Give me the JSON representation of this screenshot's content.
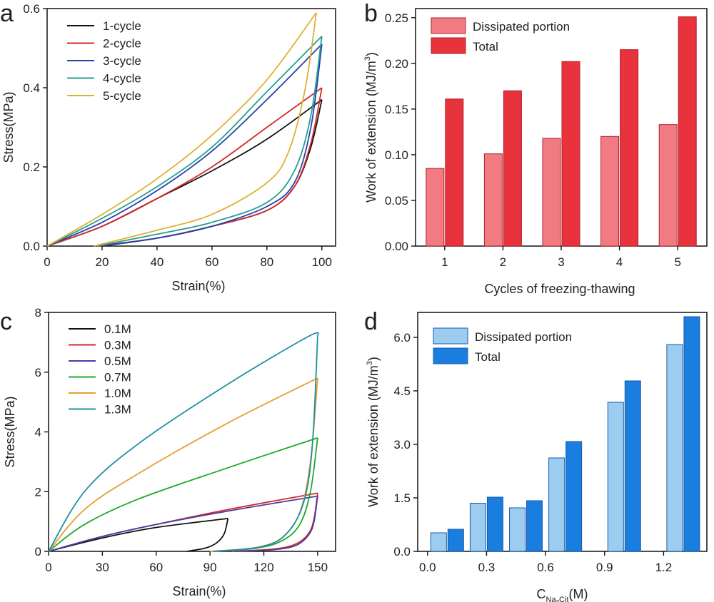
{
  "chart_data": [
    {
      "panel": "a",
      "type": "line",
      "title": "",
      "xlabel": "Strain(%)",
      "ylabel": "Stress(MPa)",
      "xlim": [
        0,
        105
      ],
      "ylim": [
        0,
        0.6
      ],
      "xticks": [
        "0",
        "20",
        "40",
        "60",
        "80",
        "100"
      ],
      "yticks": [
        "0.0",
        "0.2",
        "0.4",
        "0.6"
      ],
      "legend_position": "top-left",
      "series": [
        {
          "name": "1-cycle",
          "color": "#111111",
          "loading": [
            [
              0,
              0
            ],
            [
              20,
              0.05
            ],
            [
              40,
              0.12
            ],
            [
              60,
              0.19
            ],
            [
              80,
              0.27
            ],
            [
              100,
              0.37
            ]
          ],
          "unloading": [
            [
              100,
              0.37
            ],
            [
              96,
              0.25
            ],
            [
              90,
              0.15
            ],
            [
              80,
              0.09
            ],
            [
              60,
              0.05
            ],
            [
              40,
              0.02
            ],
            [
              20,
              0.0
            ]
          ]
        },
        {
          "name": "2-cycle",
          "color": "#d22a2a",
          "loading": [
            [
              0,
              0
            ],
            [
              20,
              0.05
            ],
            [
              40,
              0.12
            ],
            [
              60,
              0.2
            ],
            [
              80,
              0.3
            ],
            [
              100,
              0.4
            ]
          ],
          "unloading": [
            [
              100,
              0.4
            ],
            [
              96,
              0.26
            ],
            [
              90,
              0.15
            ],
            [
              80,
              0.09
            ],
            [
              60,
              0.05
            ],
            [
              40,
              0.02
            ],
            [
              19,
              0.0
            ]
          ]
        },
        {
          "name": "3-cycle",
          "color": "#2a3ea8",
          "loading": [
            [
              0,
              0
            ],
            [
              20,
              0.06
            ],
            [
              40,
              0.14
            ],
            [
              60,
              0.24
            ],
            [
              80,
              0.37
            ],
            [
              100,
              0.51
            ]
          ],
          "unloading": [
            [
              100,
              0.51
            ],
            [
              96,
              0.3
            ],
            [
              90,
              0.16
            ],
            [
              80,
              0.1
            ],
            [
              60,
              0.05
            ],
            [
              40,
              0.02
            ],
            [
              18,
              0.0
            ]
          ]
        },
        {
          "name": "4-cycle",
          "color": "#20a090",
          "loading": [
            [
              0,
              0
            ],
            [
              20,
              0.07
            ],
            [
              40,
              0.15
            ],
            [
              60,
              0.25
            ],
            [
              80,
              0.39
            ],
            [
              100,
              0.53
            ]
          ],
          "unloading": [
            [
              100,
              0.53
            ],
            [
              96,
              0.33
            ],
            [
              90,
              0.19
            ],
            [
              80,
              0.11
            ],
            [
              60,
              0.06
            ],
            [
              40,
              0.03
            ],
            [
              18,
              0.0
            ]
          ]
        },
        {
          "name": "5-cycle",
          "color": "#e0b030",
          "loading": [
            [
              0,
              0
            ],
            [
              20,
              0.08
            ],
            [
              40,
              0.17
            ],
            [
              60,
              0.28
            ],
            [
              80,
              0.42
            ],
            [
              98,
              0.59
            ]
          ],
          "unloading": [
            [
              98,
              0.59
            ],
            [
              94,
              0.4
            ],
            [
              88,
              0.24
            ],
            [
              80,
              0.16
            ],
            [
              60,
              0.08
            ],
            [
              40,
              0.04
            ],
            [
              17,
              0.0
            ]
          ]
        }
      ]
    },
    {
      "panel": "b",
      "type": "bar",
      "title": "",
      "xlabel": "Cycles of freezing-thawing",
      "ylabel": "Work of extension (MJ/m",
      "ylabel_sup": "3",
      "ylabel_end": ")",
      "categories": [
        "1",
        "2",
        "3",
        "4",
        "5"
      ],
      "ylim": [
        0,
        0.26
      ],
      "yticks": [
        "0.00",
        "0.05",
        "0.10",
        "0.15",
        "0.20",
        "0.25"
      ],
      "legend_position": "top-left",
      "series": [
        {
          "name": "Dissipated portion",
          "color": "#f27b83",
          "values": [
            0.085,
            0.101,
            0.118,
            0.12,
            0.133
          ]
        },
        {
          "name": "Total",
          "color": "#e8323c",
          "values": [
            0.161,
            0.17,
            0.202,
            0.215,
            0.251
          ]
        }
      ]
    },
    {
      "panel": "c",
      "type": "line",
      "title": "",
      "xlabel": "Strain(%)",
      "ylabel": "Stress(MPa)",
      "xlim": [
        0,
        160
      ],
      "ylim": [
        0,
        8
      ],
      "xticks": [
        "0",
        "30",
        "60",
        "90",
        "120",
        "150"
      ],
      "yticks": [
        "0",
        "2",
        "4",
        "6",
        "8"
      ],
      "legend_position": "top-left",
      "series": [
        {
          "name": "0.1M",
          "color": "#111111",
          "loading": [
            [
              0,
              0
            ],
            [
              30,
              0.45
            ],
            [
              60,
              0.8
            ],
            [
              100,
              1.1
            ]
          ],
          "unloading": [
            [
              100,
              1.1
            ],
            [
              98,
              0.6
            ],
            [
              94,
              0.3
            ],
            [
              88,
              0.12
            ],
            [
              77,
              0.0
            ]
          ]
        },
        {
          "name": "0.3M",
          "color": "#d22a2a",
          "loading": [
            [
              0,
              0
            ],
            [
              30,
              0.5
            ],
            [
              60,
              0.9
            ],
            [
              100,
              1.4
            ],
            [
              150,
              1.95
            ]
          ],
          "unloading": [
            [
              150,
              1.95
            ],
            [
              148,
              1.1
            ],
            [
              145,
              0.6
            ],
            [
              138,
              0.25
            ],
            [
              126,
              0.08
            ],
            [
              102,
              0.0
            ]
          ]
        },
        {
          "name": "0.5M",
          "color": "#4b3aa8",
          "loading": [
            [
              0,
              0
            ],
            [
              30,
              0.5
            ],
            [
              60,
              0.9
            ],
            [
              100,
              1.35
            ],
            [
              150,
              1.85
            ]
          ],
          "unloading": [
            [
              150,
              1.85
            ],
            [
              148,
              1.0
            ],
            [
              145,
              0.55
            ],
            [
              138,
              0.2
            ],
            [
              126,
              0.06
            ],
            [
              104,
              0.0
            ]
          ]
        },
        {
          "name": "0.7M",
          "color": "#22a82e",
          "loading": [
            [
              0,
              0
            ],
            [
              20,
              0.9
            ],
            [
              50,
              1.75
            ],
            [
              100,
              2.8
            ],
            [
              150,
              3.8
            ]
          ],
          "unloading": [
            [
              150,
              3.8
            ],
            [
              146,
              2.0
            ],
            [
              140,
              0.9
            ],
            [
              130,
              0.35
            ],
            [
              115,
              0.1
            ],
            [
              90,
              0.0
            ]
          ]
        },
        {
          "name": "1.0M",
          "color": "#e6a030",
          "loading": [
            [
              0,
              0
            ],
            [
              20,
              1.4
            ],
            [
              50,
              2.6
            ],
            [
              100,
              4.3
            ],
            [
              150,
              5.8
            ]
          ],
          "unloading": [
            [
              150,
              5.8
            ],
            [
              146,
              3.0
            ],
            [
              140,
              1.3
            ],
            [
              130,
              0.45
            ],
            [
              115,
              0.12
            ],
            [
              90,
              0.0
            ]
          ]
        },
        {
          "name": "1.3M",
          "color": "#1f8fa0",
          "loading": [
            [
              0,
              0
            ],
            [
              20,
              2.0
            ],
            [
              50,
              3.6
            ],
            [
              100,
              5.6
            ],
            [
              145,
              7.2
            ],
            [
              150,
              7.2
            ]
          ],
          "unloading": [
            [
              150,
              7.2
            ],
            [
              147,
              3.5
            ],
            [
              142,
              1.6
            ],
            [
              132,
              0.55
            ],
            [
              118,
              0.15
            ],
            [
              92,
              0.0
            ]
          ]
        }
      ]
    },
    {
      "panel": "d",
      "type": "bar",
      "title": "",
      "xlabel": "C",
      "xlabel_sub": "Na",
      "xlabel_sub2": "3",
      "xlabel_sub3": "Cit",
      "xlabel_end": "(M)",
      "ylabel": "Work of extension (MJ/m",
      "ylabel_sup": "3",
      "ylabel_end": ")",
      "categories": [
        "0.1",
        "0.3",
        "0.5",
        "0.7",
        "1.0",
        "1.3"
      ],
      "x_positions": [
        0.1,
        0.3,
        0.5,
        0.7,
        1.0,
        1.3
      ],
      "xlim": [
        -0.05,
        1.42
      ],
      "xticks": [
        "0.0",
        "0.3",
        "0.6",
        "0.9",
        "1.2"
      ],
      "ylim": [
        0,
        6.7
      ],
      "yticks": [
        "0.0",
        "1.5",
        "3.0",
        "4.5",
        "6.0"
      ],
      "legend_position": "top-left",
      "series": [
        {
          "name": "Dissipated portion",
          "color": "#9ccdf0",
          "values": [
            0.52,
            1.35,
            1.22,
            2.62,
            4.18,
            5.8
          ]
        },
        {
          "name": "Total",
          "color": "#1a7ee0",
          "values": [
            0.62,
            1.52,
            1.42,
            3.08,
            4.78,
            6.58
          ]
        }
      ]
    }
  ]
}
